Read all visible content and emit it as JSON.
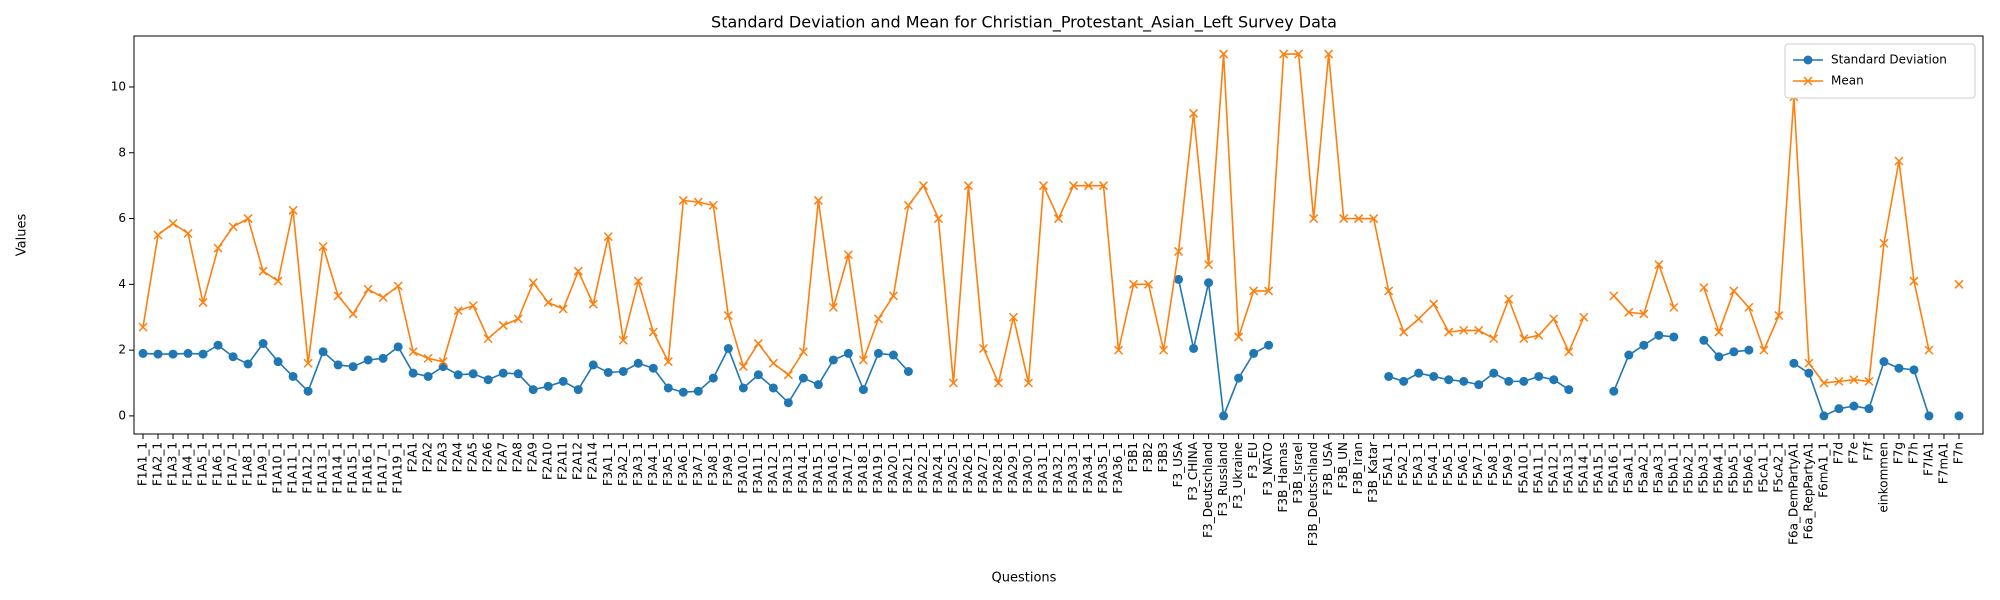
{
  "chart_data": {
    "type": "line",
    "title": "Standard Deviation and Mean for Christian_Protestant_Asian_Left Survey Data",
    "xlabel": "Questions",
    "ylabel": "Values",
    "categories": [
      "F1A1_1",
      "F1A2_1",
      "F1A3_1",
      "F1A4_1",
      "F1A5_1",
      "F1A6_1",
      "F1A7_1",
      "F1A8_1",
      "F1A9_1",
      "F1A10_1",
      "F1A11_1",
      "F1A12_1",
      "F1A13_1",
      "F1A14_1",
      "F1A15_1",
      "F1A16_1",
      "F1A17_1",
      "F1A19_1",
      "F2A1",
      "F2A2",
      "F2A3",
      "F2A4",
      "F2A5",
      "F2A6",
      "F2A7",
      "F2A8",
      "F2A9",
      "F2A10",
      "F2A11",
      "F2A12",
      "F2A14",
      "F3A1_1",
      "F3A2_1",
      "F3A3_1",
      "F3A4_1",
      "F3A5_1",
      "F3A6_1",
      "F3A7_1",
      "F3A8_1",
      "F3A9_1",
      "F3A10_1",
      "F3A11_1",
      "F3A12_1",
      "F3A13_1",
      "F3A14_1",
      "F3A15_1",
      "F3A16_1",
      "F3A17_1",
      "F3A18_1",
      "F3A19_1",
      "F3A20_1",
      "F3A21_1",
      "F3A22_1",
      "F3A24_1",
      "F3A25_1",
      "F3A26_1",
      "F3A27_1",
      "F3A28_1",
      "F3A29_1",
      "F3A30_1",
      "F3A31_1",
      "F3A32_1",
      "F3A33_1",
      "F3A34_1",
      "F3A35_1",
      "F3A36_1",
      "F3B1",
      "F3B2",
      "F3B3",
      "F3_USA",
      "F3_CHINA",
      "F3_Deutschland",
      "F3_Russland",
      "F3_Ukraine",
      "F3_EU",
      "F3_NATO",
      "F3B_Hamas",
      "F3B_Israel",
      "F3B_Deutschland",
      "F3B_USA",
      "F3B_UN",
      "F3B_Iran",
      "F3B_Katar",
      "F5A1_1",
      "F5A2_1",
      "F5A3_1",
      "F5A4_1",
      "F5A5_1",
      "F5A6_1",
      "F5A7_1",
      "F5A8_1",
      "F5A9_1",
      "F5A10_1",
      "F5A11_1",
      "F5A12_1",
      "F5A13_1",
      "F5A14_1",
      "F5A15_1",
      "F5A16_1",
      "F5aA1_1",
      "F5aA2_1",
      "F5aA3_1",
      "F5bA1_1",
      "F5bA2_1",
      "F5bA3_1",
      "F5bA4_1",
      "F5bA5_1",
      "F5bA6_1",
      "F5cA1_1",
      "F5cA2_1",
      "F6a_DemPartyA1",
      "F6a_RepPartyA1",
      "F6mA1_1",
      "F7d",
      "F7e",
      "F7f",
      "einkommen",
      "F7g",
      "F7h",
      "F7IA1",
      "F7mA1",
      "F7n"
    ],
    "series": [
      {
        "name": "Standard Deviation",
        "color": "#1f77b4",
        "marker": "o",
        "values": [
          1.9,
          1.88,
          1.88,
          1.9,
          1.88,
          2.15,
          1.8,
          1.58,
          2.2,
          1.65,
          1.2,
          0.75,
          1.95,
          1.55,
          1.5,
          1.7,
          1.75,
          2.1,
          1.3,
          1.2,
          1.5,
          1.25,
          1.28,
          1.1,
          1.3,
          1.28,
          0.8,
          0.9,
          1.05,
          0.8,
          1.55,
          1.32,
          1.35,
          1.6,
          1.45,
          0.85,
          0.72,
          0.75,
          1.15,
          2.05,
          0.85,
          1.25,
          0.85,
          0.4,
          1.15,
          0.95,
          1.7,
          1.9,
          0.8,
          1.9,
          1.85,
          1.35,
          null,
          null,
          null,
          null,
          null,
          null,
          null,
          null,
          null,
          null,
          null,
          null,
          null,
          null,
          null,
          null,
          null,
          4.15,
          2.05,
          4.05,
          0.0,
          1.15,
          1.9,
          2.15,
          null,
          null,
          null,
          null,
          null,
          null,
          null,
          1.2,
          1.05,
          1.3,
          1.2,
          1.1,
          1.05,
          0.95,
          1.3,
          1.05,
          1.05,
          1.2,
          1.1,
          0.8,
          null,
          null,
          0.75,
          1.85,
          2.15,
          2.45,
          2.4,
          null,
          2.3,
          1.8,
          1.95,
          2.0,
          null,
          null,
          1.6,
          1.3,
          0.0,
          0.22,
          0.3,
          0.22,
          1.65,
          1.45,
          1.4,
          0.0,
          null,
          0.0
        ]
      },
      {
        "name": "Mean",
        "color": "#ff7f0e",
        "marker": "x",
        "values": [
          2.7,
          5.5,
          5.85,
          5.55,
          3.45,
          5.1,
          5.75,
          6.0,
          4.4,
          4.1,
          6.25,
          1.6,
          5.15,
          3.65,
          3.1,
          3.85,
          3.6,
          3.95,
          1.95,
          1.75,
          1.65,
          3.2,
          3.35,
          2.35,
          2.75,
          2.95,
          4.05,
          3.45,
          3.25,
          4.4,
          3.4,
          5.45,
          2.3,
          4.1,
          2.55,
          1.65,
          6.55,
          6.5,
          6.4,
          3.05,
          1.5,
          2.2,
          1.6,
          1.25,
          1.95,
          6.55,
          3.3,
          4.9,
          1.7,
          2.95,
          3.65,
          6.4,
          7.0,
          6.0,
          1.0,
          7.0,
          2.05,
          1.0,
          3.0,
          1.0,
          7.0,
          6.0,
          7.0,
          7.0,
          7.0,
          2.0,
          4.0,
          4.0,
          2.0,
          5.0,
          9.2,
          4.6,
          11.0,
          2.4,
          3.8,
          3.8,
          11.0,
          11.0,
          6.0,
          11.0,
          6.0,
          6.0,
          6.0,
          3.8,
          2.55,
          2.95,
          3.4,
          2.55,
          2.6,
          2.6,
          2.35,
          3.55,
          2.35,
          2.45,
          2.95,
          1.95,
          3.0,
          null,
          3.65,
          3.15,
          3.1,
          4.6,
          3.3,
          null,
          3.9,
          2.55,
          3.8,
          3.3,
          2.0,
          3.05,
          9.7,
          1.6,
          1.0,
          1.05,
          1.1,
          1.05,
          5.25,
          7.75,
          4.1,
          2.0,
          null,
          4.0
        ]
      }
    ],
    "ylim": [
      -0.55,
      11.55
    ],
    "yticks": [
      0,
      2,
      4,
      6,
      8,
      10
    ],
    "grid": false,
    "legend": "upper right"
  }
}
